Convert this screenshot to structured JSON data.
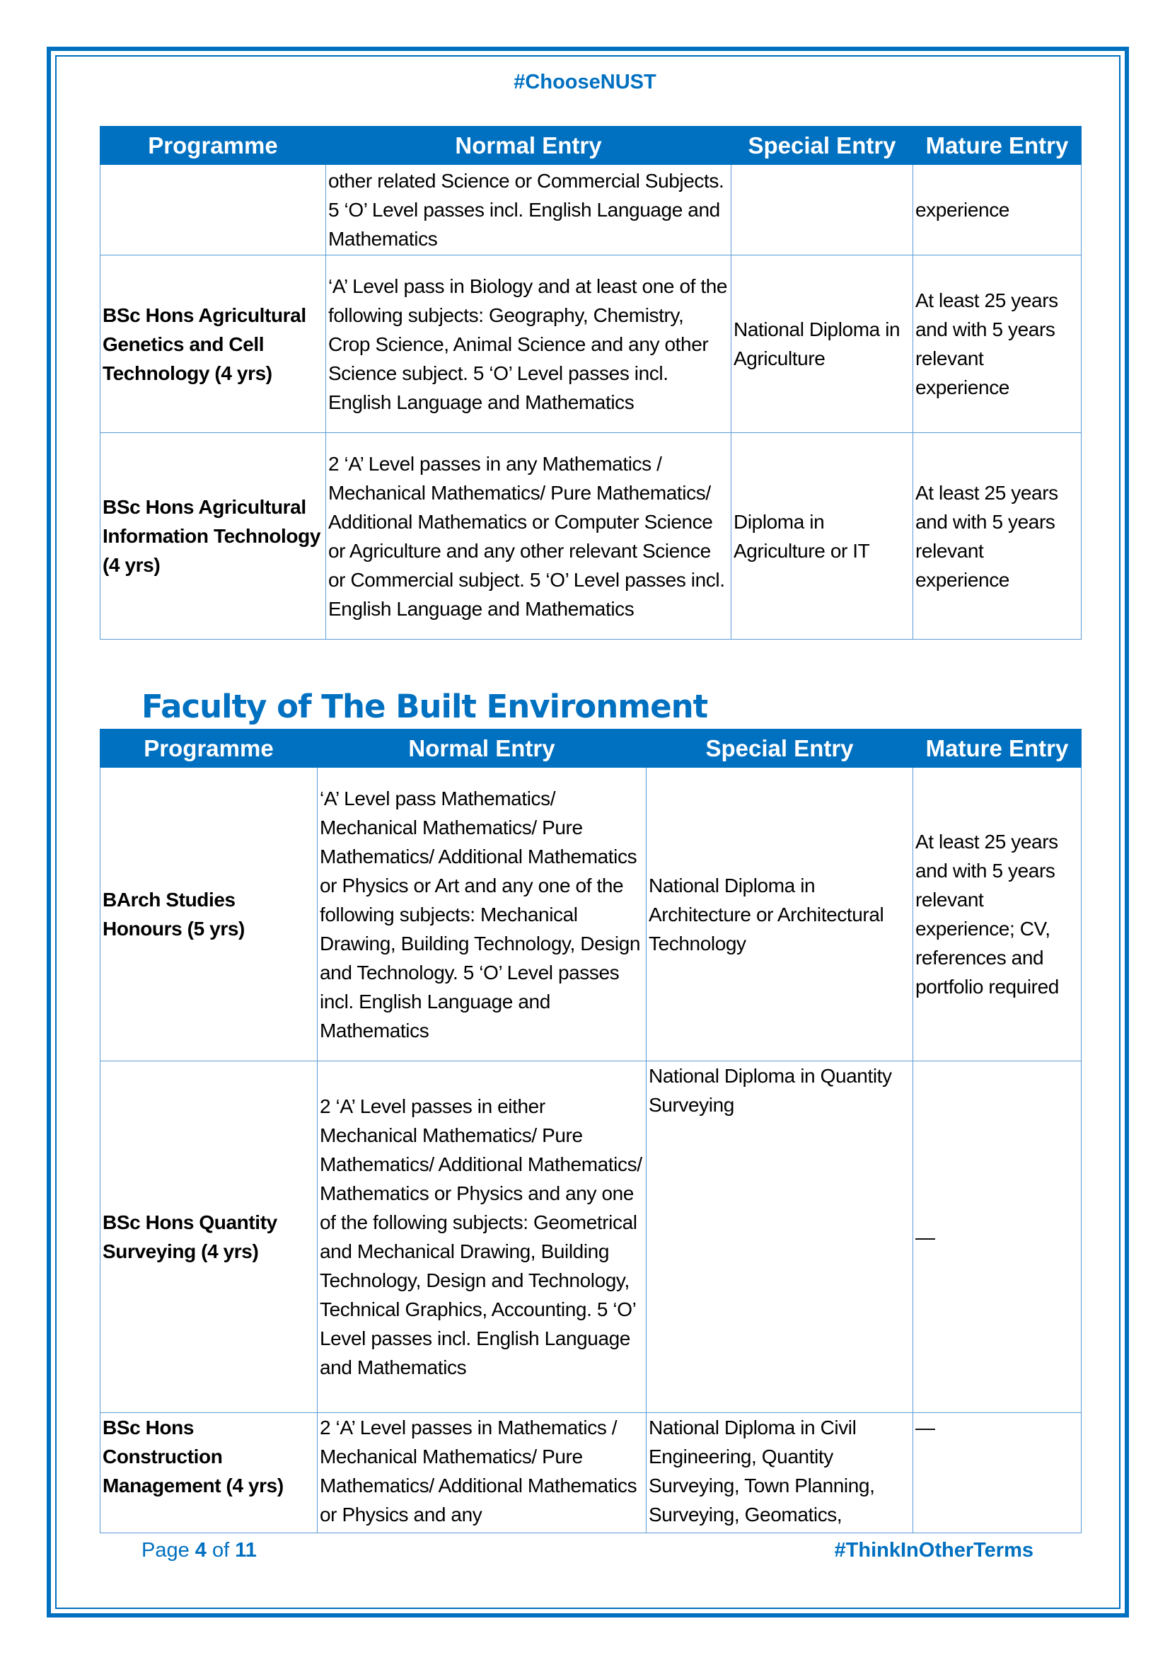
{
  "header": {
    "hashtag": "#ChooseNUST"
  },
  "columns": [
    "Programme",
    "Normal Entry",
    "Special Entry",
    "Mature Entry"
  ],
  "table1": {
    "rows": [
      {
        "programme": "",
        "normal": "other related Science or Commercial Subjects. 5 ‘O’ Level passes incl. English Language and Mathematics",
        "special": "",
        "mature": "experience"
      },
      {
        "programme": "BSc Hons Agricultural Genetics and Cell Technology (4 yrs)",
        "normal": "‘A’ Level pass in Biology and at least one of the following subjects: Geography, Chemistry, Crop Science, Animal Science and any other Science subject. 5 ‘O’ Level passes incl. English Language and Mathematics",
        "special": "National Diploma in Agriculture",
        "mature": "At least 25 years and with 5 years relevant experience"
      },
      {
        "programme": "BSc Hons Agricultural Information Technology (4 yrs)",
        "normal": "2 ‘A’ Level passes in any Mathematics / Mechanical Mathematics/ Pure Mathematics/ Additional Mathematics or Computer Science or Agriculture and any other relevant Science or Commercial subject. 5 ‘O’ Level passes incl. English Language and Mathematics",
        "special": "Diploma in Agriculture or IT",
        "mature": "At least 25 years and with 5 years relevant experience"
      }
    ]
  },
  "faculty": {
    "title": "Faculty of The Built Environment"
  },
  "table2": {
    "rows": [
      {
        "programme": "BArch Studies Honours (5 yrs)",
        "normal": "‘A’ Level pass Mathematics/ Mechanical Mathematics/ Pure Mathematics/ Additional Mathematics or Physics or Art and any one of the following subjects: Mechanical Drawing, Building Technology, Design and Technology. 5 ‘O’ Level passes incl. English Language and Mathematics",
        "special": "National Diploma in Architecture or Architectural Technology",
        "mature": "At least 25 years and with 5 years relevant experience; CV, references and portfolio required"
      },
      {
        "programme": "BSc Hons Quantity Surveying (4 yrs)",
        "normal": "2 ‘A’ Level passes in either Mechanical Mathematics/ Pure Mathematics/ Additional Mathematics/ Mathematics or Physics and any one of the following subjects: Geometrical and Mechanical Drawing, Building Technology, Design and Technology, Technical Graphics, Accounting. 5 ‘O’ Level passes incl. English Language and Mathematics",
        "special": "National Diploma in Quantity Surveying",
        "mature": "—"
      },
      {
        "programme": "BSc Hons Construction Management (4 yrs)",
        "normal": "2 ‘A’ Level passes in Mathematics / Mechanical Mathematics/ Pure Mathematics/ Additional Mathematics or Physics and any",
        "special": "National Diploma in Civil Engineering, Quantity Surveying, Town Planning, Surveying, Geomatics,",
        "mature": "—"
      }
    ]
  },
  "footer": {
    "page_prefix": "Page",
    "page_current": "4",
    "page_of": "of",
    "page_total": "11",
    "hashtag": "#ThinkInOtherTerms"
  },
  "colors": {
    "accent": "#0070c0",
    "border": "#5b9bd5"
  }
}
